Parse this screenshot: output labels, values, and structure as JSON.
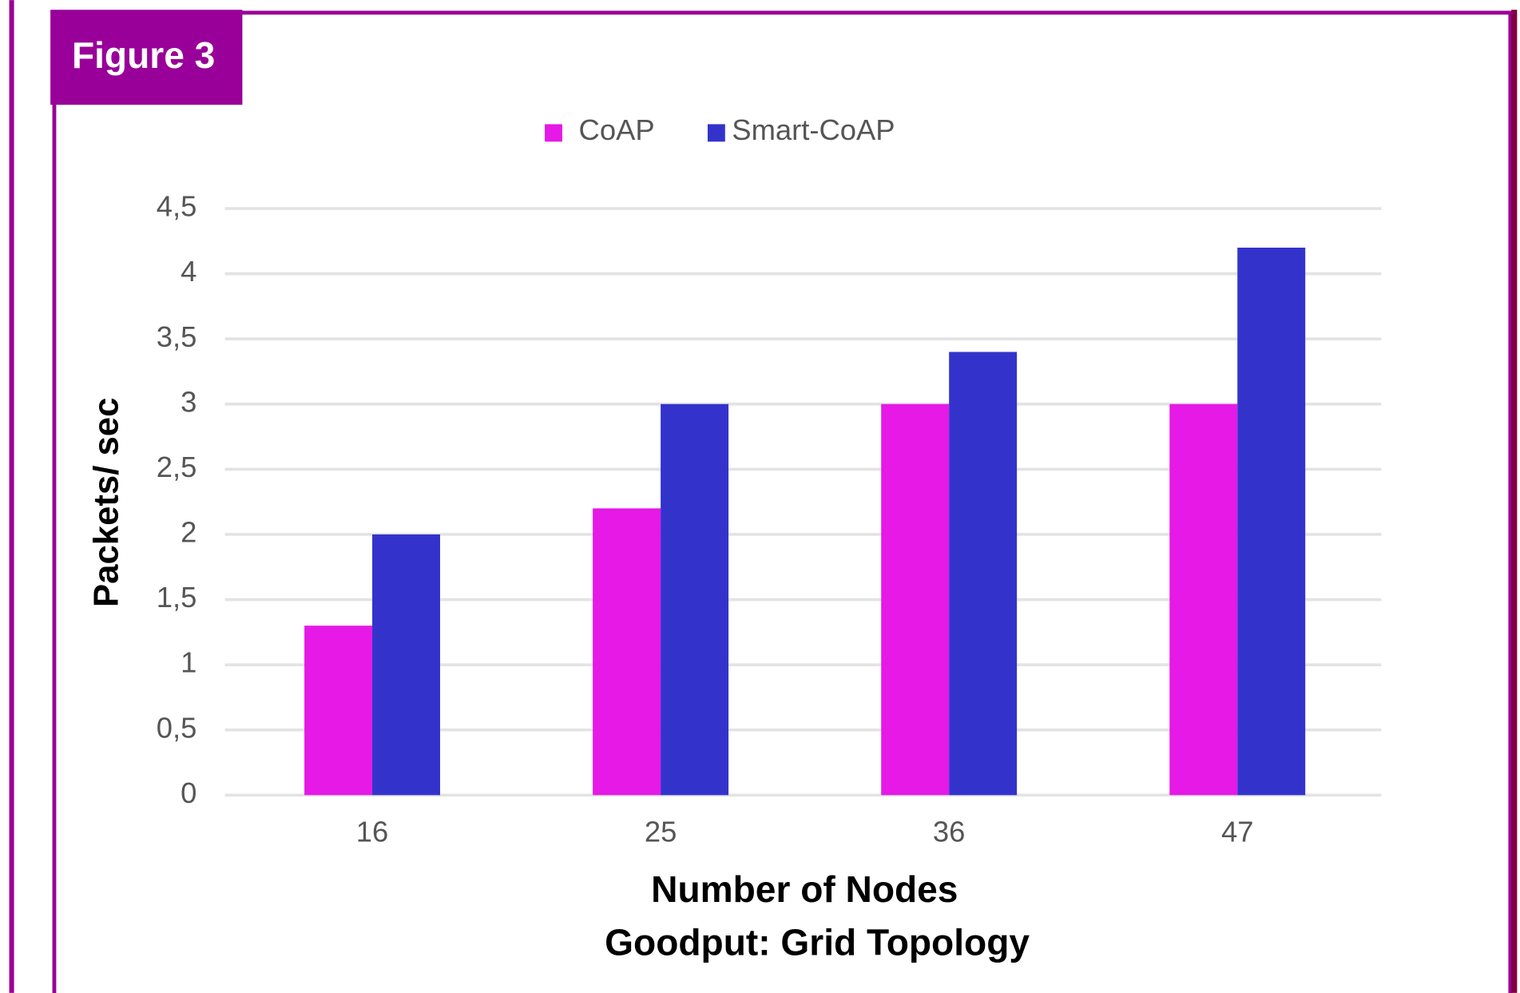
{
  "figure_label": "Figure 3",
  "chart_data": {
    "type": "bar",
    "title": "Goodput: Grid Topology",
    "x_label": "Number of Nodes",
    "y_label": "Packets/ sec",
    "categories": [
      "16",
      "25",
      "36",
      "47"
    ],
    "series": [
      {
        "name": "CoAP",
        "color": "#e619e6",
        "values": [
          1.3,
          2.2,
          3,
          3
        ]
      },
      {
        "name": "Smart-CoAP",
        "color": "#3333cc",
        "values": [
          2,
          3,
          3.4,
          4.2
        ]
      }
    ],
    "ylim": [
      0,
      4.5
    ],
    "yticks": [
      0,
      {
        "value": 0.5,
        "label": "0,5"
      },
      1,
      {
        "value": 1.5,
        "label": "1,5"
      },
      2,
      {
        "value": 2.5,
        "label": "2,5"
      },
      3,
      {
        "value": 3.5,
        "label": "3,5"
      },
      4,
      {
        "value": 4.5,
        "label": "4,5"
      }
    ],
    "grid": true,
    "legend": "top"
  }
}
